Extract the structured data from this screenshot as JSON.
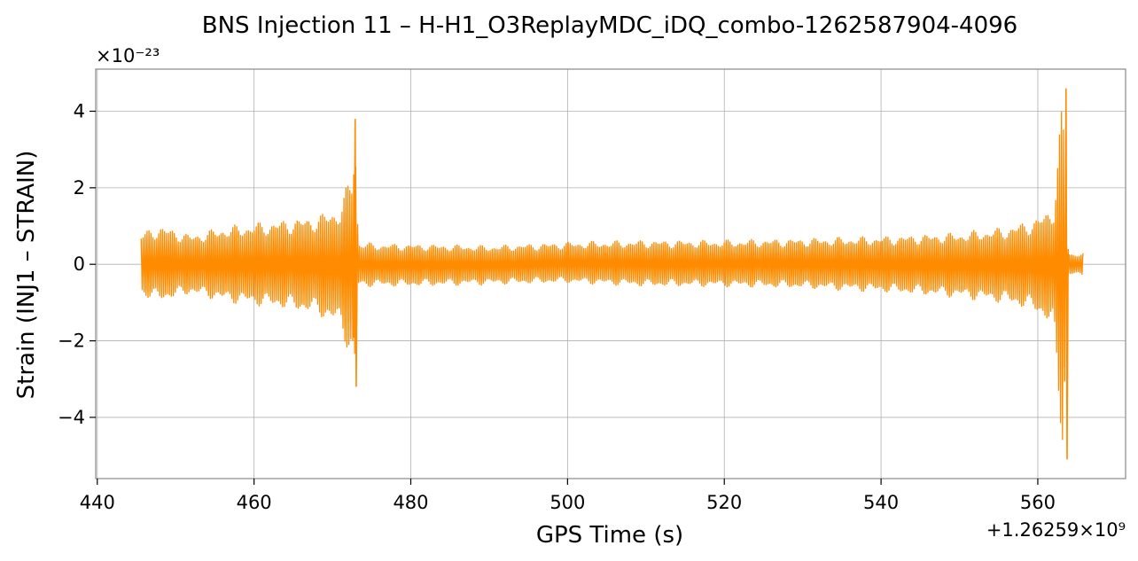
{
  "chart_data": {
    "type": "line",
    "title": "BNS Injection 11 – H-H1_O3ReplayMDC_iDQ_combo-1262587904-4096",
    "xlabel": "GPS Time (s)",
    "ylabel": "Strain (INJ1 – STRAIN)",
    "x_offset_label": "+1.26259×10⁹",
    "y_scale_label": "×10⁻²³",
    "xlim": [
      439.8,
      571.2
    ],
    "ylim": [
      -5.6,
      5.1
    ],
    "xticks": [
      440,
      460,
      480,
      500,
      520,
      540,
      560
    ],
    "yticks": [
      -4,
      -2,
      0,
      2,
      4
    ],
    "grid": true,
    "line_color": "#ff8c00",
    "series": [
      {
        "x_range": [
          445.6,
          565.8
        ],
        "envelope": {
          "x": [
            445.6,
            448,
            452,
            456,
            460,
            464,
            468,
            471,
            472.5,
            472.9,
            473.3,
            476,
            480,
            490,
            500,
            510,
            520,
            530,
            540,
            550,
            556,
            560,
            562,
            563.2,
            563.7,
            564.2,
            565.8
          ],
          "upper": [
            0.85,
            1.05,
            0.8,
            1.0,
            1.1,
            1.2,
            1.3,
            1.55,
            2.5,
            3.8,
            0.6,
            0.55,
            0.55,
            0.5,
            0.6,
            0.65,
            0.65,
            0.7,
            0.75,
            0.85,
            1.0,
            1.25,
            1.6,
            4.6,
            0.35,
            0.3,
            0.3
          ],
          "lower": [
            -0.85,
            -1.0,
            -0.8,
            -1.0,
            -1.1,
            -1.2,
            -1.35,
            -1.7,
            -2.6,
            -3.2,
            -0.6,
            -0.6,
            -0.6,
            -0.55,
            -0.5,
            -0.6,
            -0.6,
            -0.65,
            -0.75,
            -0.9,
            -1.05,
            -1.3,
            -1.8,
            -5.1,
            -0.3,
            -0.3,
            -0.3
          ]
        }
      }
    ]
  }
}
